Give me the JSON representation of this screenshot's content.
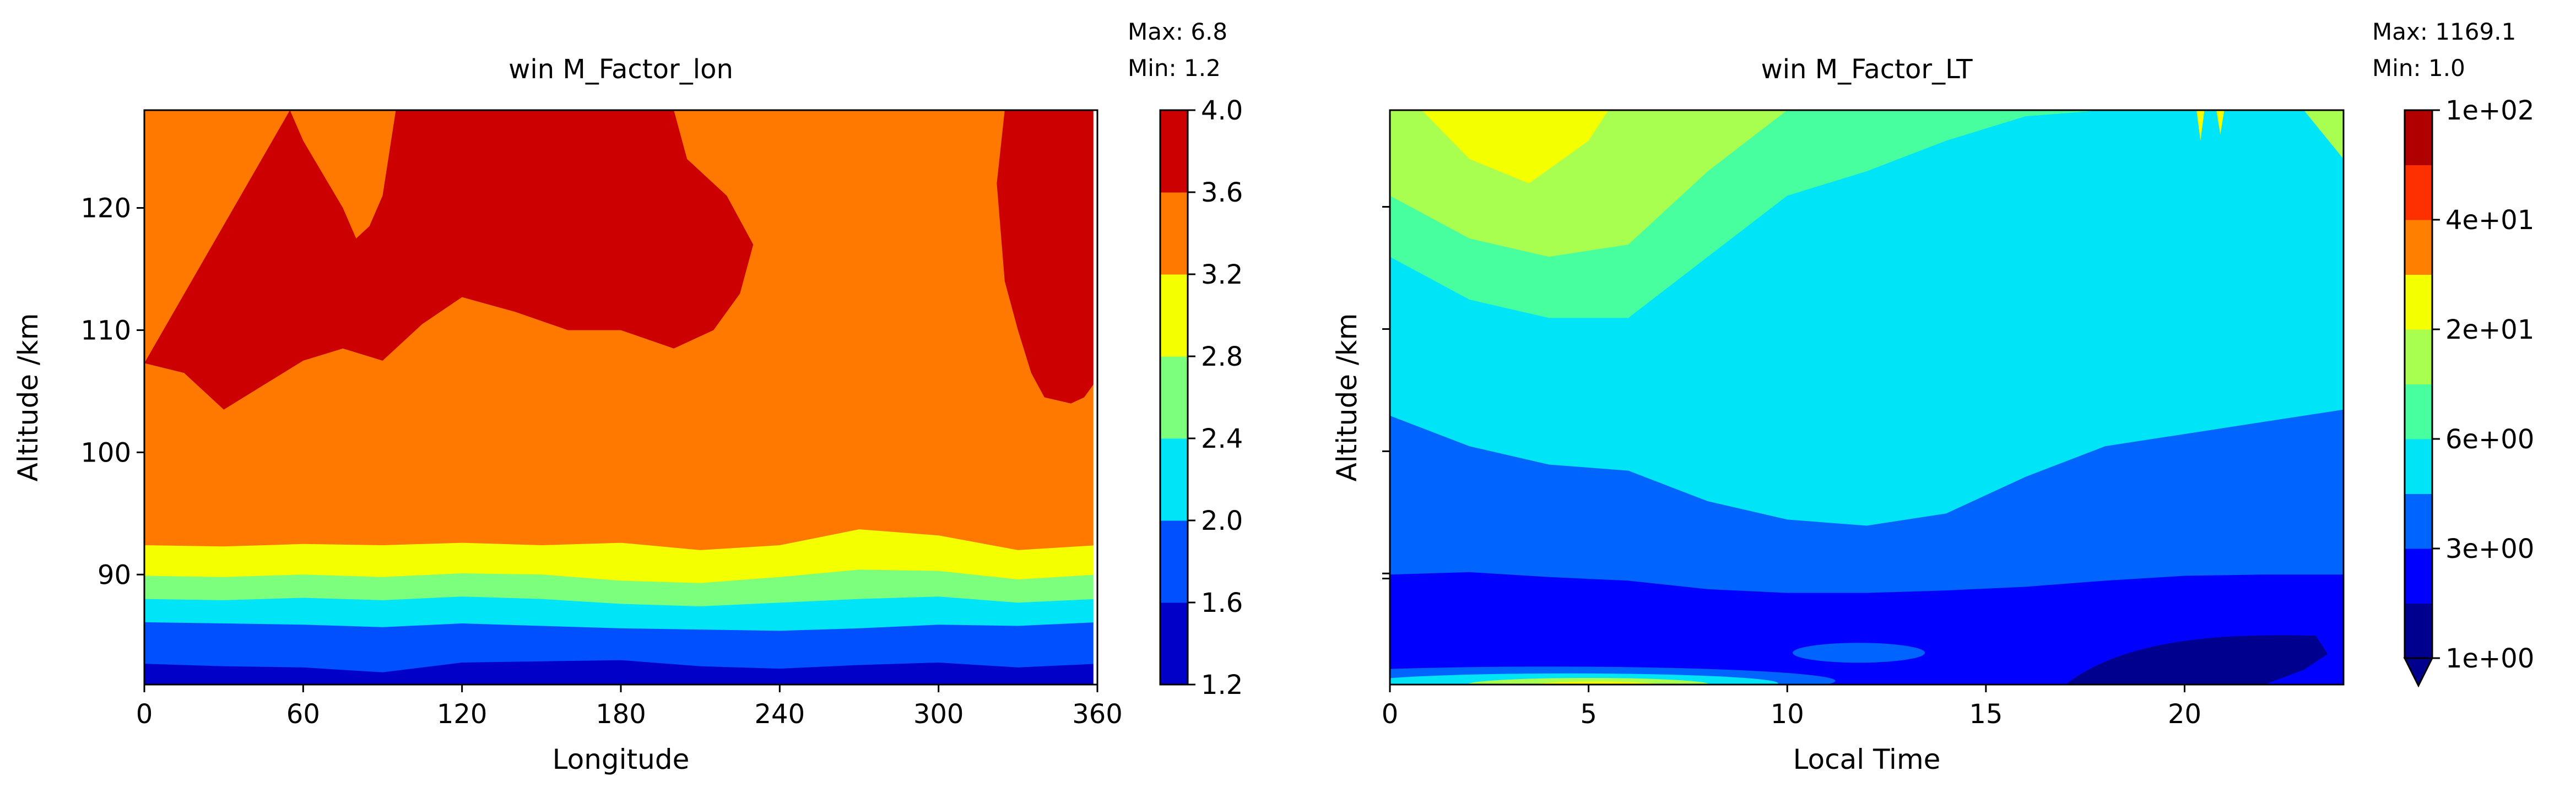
{
  "chart_data": [
    {
      "type": "contour",
      "title": "win M_Factor_lon",
      "max_label": "Max: 6.8",
      "min_label": "Min: 1.2",
      "xlabel": "Longitude",
      "ylabel": "Altitude /km",
      "xlim": [
        0,
        360
      ],
      "ylim": [
        81,
        128
      ],
      "xticks": [
        "0",
        "60",
        "120",
        "180",
        "240",
        "300",
        "360"
      ],
      "yticks": [
        "90",
        "100",
        "110",
        "120"
      ],
      "colorbar": {
        "levels": [
          "1.2",
          "1.6",
          "2.0",
          "2.4",
          "2.8",
          "3.2",
          "3.6",
          "4.0"
        ],
        "colors": [
          "#0000c8",
          "#0050ff",
          "#00e4f8",
          "#7cff7c",
          "#f4ff00",
          "#ff7800",
          "#cc0000"
        ]
      },
      "boundaries": [
        {
          "name": "1.6",
          "x": [
            0,
            30,
            60,
            90,
            120,
            150,
            180,
            210,
            240,
            270,
            300,
            330,
            360
          ],
          "y": [
            82.7,
            82.5,
            82.4,
            82.0,
            82.8,
            82.9,
            83.0,
            82.5,
            82.3,
            82.6,
            82.8,
            82.4,
            82.7
          ]
        },
        {
          "name": "2.0",
          "x": [
            0,
            30,
            60,
            90,
            120,
            150,
            180,
            210,
            240,
            270,
            300,
            330,
            360
          ],
          "y": [
            86.1,
            86.0,
            85.9,
            85.7,
            86.0,
            85.8,
            85.6,
            85.5,
            85.4,
            85.6,
            85.9,
            85.8,
            86.1
          ]
        },
        {
          "name": "2.4",
          "x": [
            0,
            30,
            60,
            90,
            120,
            150,
            180,
            210,
            240,
            270,
            300,
            330,
            360
          ],
          "y": [
            88.0,
            87.9,
            88.1,
            87.9,
            88.2,
            88.0,
            87.6,
            87.4,
            87.7,
            88.0,
            88.2,
            87.7,
            88.0
          ]
        },
        {
          "name": "2.8",
          "x": [
            0,
            30,
            60,
            90,
            120,
            150,
            180,
            210,
            240,
            270,
            300,
            330,
            360
          ],
          "y": [
            89.9,
            89.8,
            90.0,
            89.8,
            90.1,
            90.0,
            89.5,
            89.3,
            89.8,
            90.4,
            90.3,
            89.6,
            90.0
          ]
        },
        {
          "name": "3.2",
          "x": [
            0,
            30,
            60,
            90,
            120,
            150,
            180,
            210,
            240,
            270,
            300,
            330,
            360
          ],
          "y": [
            92.4,
            92.3,
            92.5,
            92.4,
            92.6,
            92.4,
            92.6,
            92.0,
            92.4,
            93.7,
            93.2,
            92.0,
            92.4
          ]
        },
        {
          "name": "3.6",
          "x": [
            0,
            15,
            30,
            45,
            60,
            75,
            90,
            105,
            120,
            140,
            160,
            180,
            200,
            215,
            225,
            230,
            220,
            205,
            200,
            195,
            170,
            140,
            120,
            100,
            95,
            90,
            85,
            80,
            75,
            60,
            55
          ],
          "y": [
            107.3,
            106.5,
            103.5,
            105.5,
            107.5,
            108.5,
            107.5,
            110.5,
            112.7,
            111.5,
            110.0,
            110.0,
            108.5,
            110.0,
            113.0,
            117.0,
            121.0,
            124.0,
            128.0,
            128.0,
            128.0,
            128.0,
            128.0,
            128.0,
            128.0,
            121.0,
            118.5,
            117.5,
            120.0,
            125.5,
            128.0
          ]
        },
        {
          "name": "3.6b",
          "x": [
            325,
            322,
            325,
            330,
            335,
            340,
            350,
            355,
            360
          ],
          "y": [
            128.0,
            122.0,
            114.0,
            110.0,
            106.5,
            104.5,
            104.0,
            104.5,
            106.0
          ]
        }
      ]
    },
    {
      "type": "contour",
      "title": "win M_Factor_LT",
      "max_label": "Max: 1169.1",
      "min_label": "Min: 1.0",
      "xlabel": "Local Time",
      "ylabel": "Altitude /km",
      "xlim": [
        0,
        24
      ],
      "ylim": [
        81,
        128
      ],
      "xticks": [
        "0",
        "5",
        "10",
        "15",
        "20"
      ],
      "yticks": [
        "",
        "",
        "",
        "",
        ""
      ],
      "colorbar": {
        "levels": [
          "1e+00",
          "3e+00",
          "6e+00",
          "2e+01",
          "4e+01",
          "1e+02"
        ],
        "colors": [
          "#00008f",
          "#0000ff",
          "#0064ff",
          "#00e4f8",
          "#48ffa0",
          "#a8ff50",
          "#f4ff00",
          "#ff8000",
          "#ff3000",
          "#b00000"
        ]
      },
      "regions": [
        {
          "name": "blue-lower",
          "x": [
            0,
            2,
            4,
            6,
            8,
            10,
            12,
            14,
            16,
            18,
            20,
            22,
            24
          ],
          "y": [
            90.0,
            90.2,
            89.8,
            89.5,
            88.8,
            88.5,
            88.5,
            88.7,
            89.0,
            89.5,
            89.9,
            90.0,
            90.0
          ]
        },
        {
          "name": "cyan-lower",
          "x": [
            0,
            2,
            4,
            6,
            8,
            10,
            12,
            14,
            16,
            18,
            20,
            22,
            24
          ],
          "y": [
            103.0,
            100.5,
            99.0,
            98.5,
            96.0,
            94.5,
            94.0,
            95.0,
            98.0,
            100.5,
            101.5,
            102.5,
            103.5
          ]
        },
        {
          "name": "teal-lower",
          "x": [
            0,
            2,
            4,
            6,
            8,
            10,
            12,
            14,
            16,
            18,
            20,
            22,
            24
          ],
          "y": [
            116.0,
            112.5,
            111.0,
            111.0,
            116.0,
            121.0,
            123.0,
            125.5,
            127.5,
            128.0,
            128.0,
            128.0,
            128.0
          ]
        },
        {
          "name": "green-lower",
          "x": [
            0,
            2,
            4,
            6,
            8,
            10
          ],
          "y": [
            121.0,
            117.5,
            116.0,
            117.0,
            123.0,
            128.0
          ]
        },
        {
          "name": "yellow",
          "x": [
            0.8,
            2,
            3.5,
            5,
            5.5
          ],
          "y": [
            128.0,
            124.0,
            122.0,
            125.5,
            128.0
          ]
        }
      ]
    }
  ]
}
